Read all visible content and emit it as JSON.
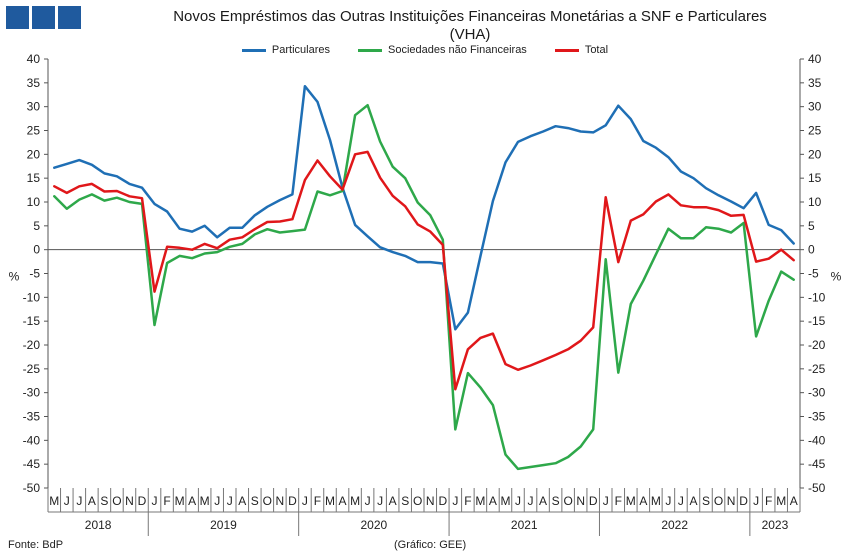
{
  "header": {
    "title_line1": "Novos Empréstimos das Outras Instituições Financeiras Monetárias a SNF e Particulares",
    "title_line2": "(VHA)"
  },
  "footer": {
    "source": "Fonte: BdP",
    "credit": "(Gráfico: GEE)"
  },
  "chart_data": {
    "type": "line",
    "title": "Novos Empréstimos das Outras Instituições Financeiras Monetárias a SNF e Particulares (VHA)",
    "ylabel": "%",
    "ylabel_right": "%",
    "ylim": [
      -50,
      40
    ],
    "yticks": [
      -50,
      -45,
      -40,
      -35,
      -30,
      -25,
      -20,
      -15,
      -10,
      -5,
      0,
      5,
      10,
      15,
      20,
      25,
      30,
      35,
      40
    ],
    "legend_position": "top-center",
    "grid": false,
    "month_labels": [
      "M",
      "J",
      "J",
      "A",
      "S",
      "O",
      "N",
      "D",
      "J",
      "F",
      "M",
      "A",
      "M",
      "J",
      "J",
      "A",
      "S",
      "O",
      "N",
      "D",
      "J",
      "F",
      "M",
      "A",
      "M",
      "J",
      "J",
      "A",
      "S",
      "O",
      "N",
      "D",
      "J",
      "F",
      "M",
      "A",
      "M",
      "J",
      "J",
      "A",
      "S",
      "O",
      "N",
      "D",
      "J",
      "F",
      "M",
      "A",
      "M",
      "J",
      "J",
      "A",
      "S",
      "O",
      "N",
      "D",
      "J",
      "F",
      "M",
      "A"
    ],
    "year_labels": [
      "2018",
      "2019",
      "2020",
      "2021",
      "2022",
      "2023"
    ],
    "x_start": "2018-05",
    "x_end": "2023-04",
    "series": [
      {
        "name": "Particulares",
        "color": "#1f6fb5",
        "values": [
          17.2,
          18.0,
          18.8,
          17.8,
          16.0,
          15.4,
          13.8,
          13.0,
          9.6,
          8.0,
          4.4,
          3.8,
          5.0,
          2.6,
          4.6,
          4.6,
          7.2,
          9.0,
          10.4,
          11.6,
          34.3,
          31.0,
          23.0,
          13.0,
          5.2,
          2.8,
          0.5,
          -0.5,
          -1.3,
          -2.6,
          -2.6,
          -2.9,
          -16.7,
          -13.2,
          -1.4,
          10.2,
          18.3,
          22.6,
          23.8,
          24.8,
          25.9,
          25.5,
          24.8,
          24.6,
          26.1,
          30.2,
          27.4,
          22.8,
          21.4,
          19.4,
          16.4,
          15.0,
          12.9,
          11.4,
          10.1,
          8.7,
          11.9,
          5.2,
          4.1,
          1.3
        ]
      },
      {
        "name": "Sociedades não Financeiras",
        "color": "#2ea84a",
        "values": [
          11.2,
          8.6,
          10.5,
          11.6,
          10.3,
          10.9,
          10.0,
          9.6,
          -15.8,
          -2.8,
          -1.3,
          -1.8,
          -0.8,
          -0.5,
          0.6,
          1.2,
          3.2,
          4.3,
          3.6,
          3.9,
          4.2,
          12.2,
          11.4,
          12.3,
          28.2,
          30.3,
          22.7,
          17.4,
          15.0,
          9.9,
          7.2,
          2.1,
          -37.7,
          -25.9,
          -28.9,
          -32.6,
          -43.0,
          -46.0,
          -45.6,
          -45.2,
          -44.8,
          -43.5,
          -41.3,
          -37.7,
          -2.0,
          -25.8,
          -11.4,
          -6.5,
          -1.0,
          4.4,
          2.4,
          2.4,
          4.7,
          4.4,
          3.6,
          5.6,
          -18.2,
          -10.7,
          -4.6,
          -6.3
        ]
      },
      {
        "name": "Total",
        "color": "#e0171a",
        "values": [
          13.3,
          11.9,
          13.3,
          13.8,
          12.2,
          12.3,
          11.2,
          10.8,
          -8.8,
          0.6,
          0.4,
          0.0,
          1.2,
          0.3,
          2.1,
          2.6,
          4.3,
          5.8,
          5.9,
          6.4,
          14.6,
          18.7,
          15.4,
          12.6,
          20.0,
          20.5,
          15.1,
          11.3,
          9.1,
          5.3,
          3.8,
          1.0,
          -29.3,
          -20.9,
          -18.5,
          -17.6,
          -24.0,
          -25.2,
          -24.3,
          -23.2,
          -22.1,
          -20.9,
          -19.1,
          -16.3,
          11.0,
          -2.6,
          6.1,
          7.4,
          10.1,
          11.6,
          9.3,
          8.9,
          8.9,
          8.3,
          7.1,
          7.3,
          -2.5,
          -1.9,
          0.0,
          -2.2
        ]
      }
    ]
  }
}
